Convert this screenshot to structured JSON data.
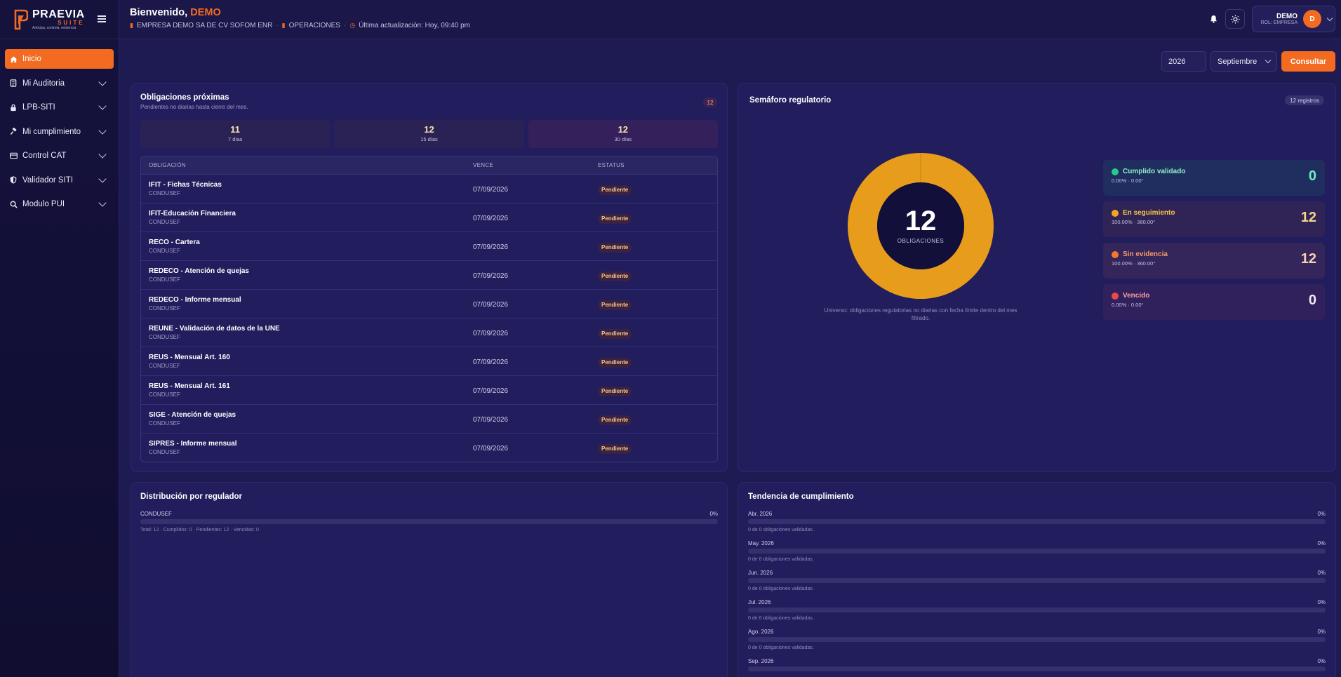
{
  "sidebar": {
    "logo_title": "PRAEVIA",
    "logo_sub": "SUITE",
    "logo_tag": "Anticipa, controla, evidencia",
    "items": [
      {
        "label": "Inicio",
        "icon": "home-icon",
        "active": true
      },
      {
        "label": "Mi Auditoria",
        "icon": "clipboard-icon"
      },
      {
        "label": "LPB-SITI",
        "icon": "lock-icon"
      },
      {
        "label": "Mi cumplimiento",
        "icon": "gavel-icon"
      },
      {
        "label": "Control CAT",
        "icon": "card-icon"
      },
      {
        "label": "Validador SITI",
        "icon": "shield-icon"
      },
      {
        "label": "Modulo PUI",
        "icon": "search-icon"
      }
    ]
  },
  "header": {
    "greeting": "Bienvenido,",
    "user": "DEMO",
    "company": "EMPRESA DEMO SA DE CV SOFOM ENR",
    "area": "OPERACIONES",
    "last_update": "Última actualización: Hoy, 09:40 pm",
    "user_name": "DEMO",
    "user_role": "ROL: EMPRESA",
    "avatar_initial": "D"
  },
  "filters": {
    "year": "2026",
    "month": "Septiembre",
    "consult_label": "Consultar"
  },
  "obligaciones": {
    "title": "Obligaciones próximas",
    "subtitle": "Pendientes no diarias hasta cierre del mes.",
    "count": "12",
    "stats": [
      {
        "value": "11",
        "label": "7 días"
      },
      {
        "value": "12",
        "label": "15 días"
      },
      {
        "value": "12",
        "label": "30 días"
      }
    ],
    "columns": {
      "name": "OBLIGACIÓN",
      "due": "VENCE",
      "status": "ESTATUS"
    },
    "rows": [
      {
        "name": "IFIT - Fichas Técnicas",
        "reg": "CONDUSEF",
        "due": "07/09/2026",
        "status": "Pendiente"
      },
      {
        "name": "IFIT-Educación Financiera",
        "reg": "CONDUSEF",
        "due": "07/09/2026",
        "status": "Pendiente"
      },
      {
        "name": "RECO - Cartera",
        "reg": "CONDUSEF",
        "due": "07/09/2026",
        "status": "Pendiente"
      },
      {
        "name": "REDECO - Atención de quejas",
        "reg": "CONDUSEF",
        "due": "07/09/2026",
        "status": "Pendiente"
      },
      {
        "name": "REDECO - Informe mensual",
        "reg": "CONDUSEF",
        "due": "07/09/2026",
        "status": "Pendiente"
      },
      {
        "name": "REUNE - Validación de datos de la UNE",
        "reg": "CONDUSEF",
        "due": "07/09/2026",
        "status": "Pendiente"
      },
      {
        "name": "REUS - Mensual Art. 160",
        "reg": "CONDUSEF",
        "due": "07/09/2026",
        "status": "Pendiente"
      },
      {
        "name": "REUS - Mensual Art. 161",
        "reg": "CONDUSEF",
        "due": "07/09/2026",
        "status": "Pendiente"
      },
      {
        "name": "SIGE - Atención de quejas",
        "reg": "CONDUSEF",
        "due": "07/09/2026",
        "status": "Pendiente"
      },
      {
        "name": "SIPRES - Informe mensual",
        "reg": "CONDUSEF",
        "due": "07/09/2026",
        "status": "Pendiente"
      }
    ]
  },
  "semaforo": {
    "title": "Semáforo regulatorio",
    "records": "12 registros",
    "total": "12",
    "total_label": "OBLIGACIONES",
    "universe_note": "Universo: obligaciones regulatorias no diarias con fecha límite dentro del mes filtrado.",
    "legend": [
      {
        "name": "Cumplido validado",
        "pct": "0.00% · 0.00°",
        "value": "0",
        "color": "#27c98f"
      },
      {
        "name": "En seguimiento",
        "pct": "100.00% · 360.00°",
        "value": "12",
        "color": "#f2a51e"
      },
      {
        "name": "Sin evidencia",
        "pct": "100.00% · 360.00°",
        "value": "12",
        "color": "#f2782e"
      },
      {
        "name": "Vencido",
        "pct": "0.00% · 0.00°",
        "value": "0",
        "color": "#e84a4a"
      }
    ]
  },
  "distribucion": {
    "title": "Distribución por regulador",
    "rows": [
      {
        "name": "CONDUSEF",
        "pct": "0%",
        "fraction": 0,
        "note": "Total: 12 · Cumplidos: 0 · Pendientes: 12 · Vencidas: 0"
      }
    ]
  },
  "tendencia": {
    "title": "Tendencia de cumplimiento",
    "rows": [
      {
        "month": "Abr. 2026",
        "pct": "0%",
        "fraction": 0,
        "note": "0 de 0 obligaciones validadas."
      },
      {
        "month": "May. 2026",
        "pct": "0%",
        "fraction": 0,
        "note": "0 de 0 obligaciones validadas."
      },
      {
        "month": "Jun. 2026",
        "pct": "0%",
        "fraction": 0,
        "note": "0 de 0 obligaciones validadas."
      },
      {
        "month": "Jul. 2026",
        "pct": "0%",
        "fraction": 0,
        "note": "0 de 0 obligaciones validadas."
      },
      {
        "month": "Ago. 2026",
        "pct": "0%",
        "fraction": 0,
        "note": "0 de 0 obligaciones validadas."
      },
      {
        "month": "Sep. 2026",
        "pct": "0%",
        "fraction": 0,
        "note": ""
      }
    ]
  }
}
